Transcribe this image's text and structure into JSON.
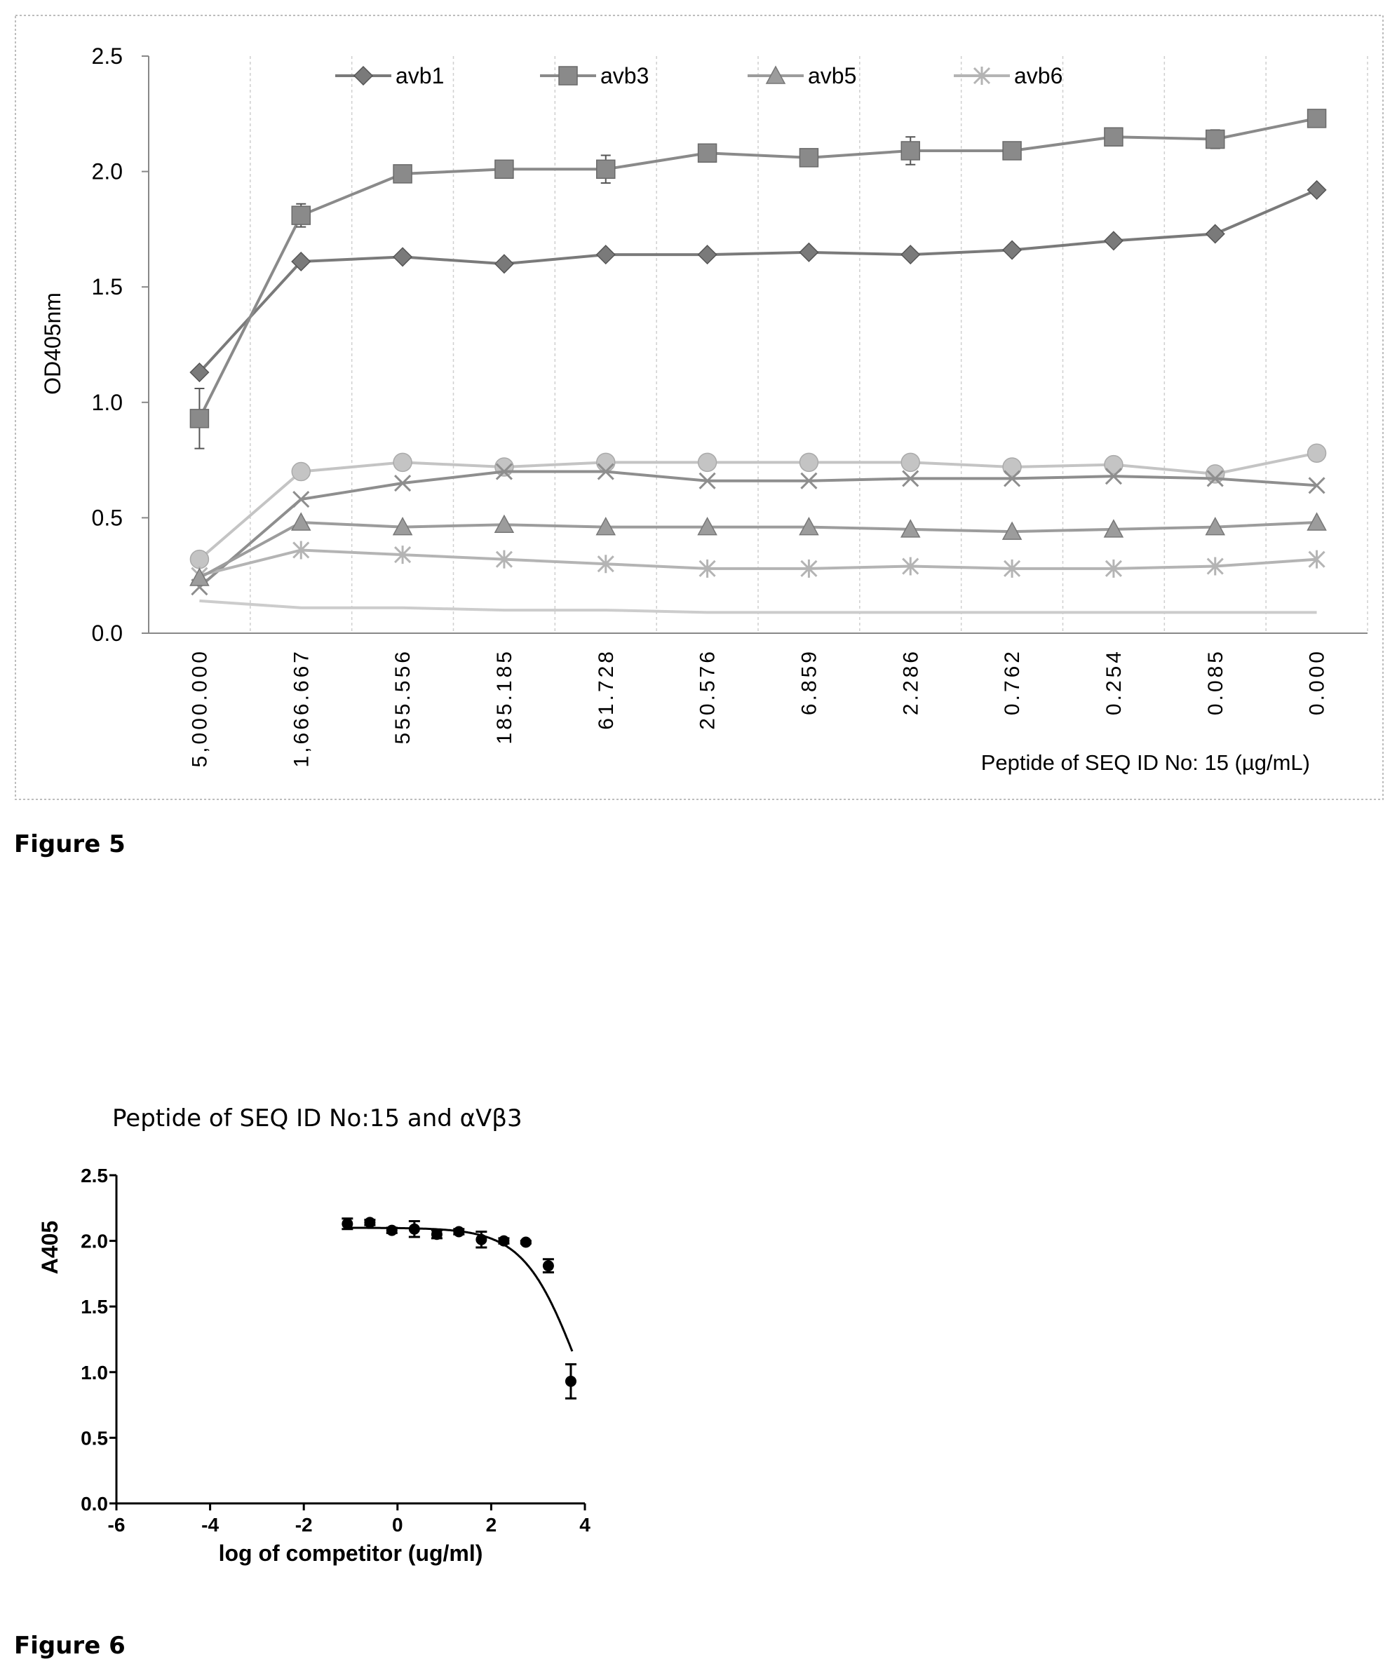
{
  "figure5": {
    "caption": "Figure 5",
    "chart_data": {
      "type": "line",
      "title": "",
      "ylabel": "OD405nm",
      "xlabel": "Peptide of SEQ ID No: 15 (µg/mL)",
      "ylim": [
        0,
        2.5
      ],
      "yticks": [
        "0.0",
        "0.5",
        "1.0",
        "1.5",
        "2.0",
        "2.5"
      ],
      "categories": [
        "5,000.000",
        "1,666.667",
        "555.556",
        "185.185",
        "61.728",
        "20.576",
        "6.859",
        "2.286",
        "0.762",
        "0.254",
        "0.085",
        "0.000"
      ],
      "grid": true,
      "legend_position": "top",
      "series": [
        {
          "name": "avb1",
          "marker": "diamond",
          "color": "#7a7a7a",
          "values": [
            1.13,
            1.61,
            1.63,
            1.6,
            1.64,
            1.64,
            1.65,
            1.64,
            1.66,
            1.7,
            1.73,
            1.92
          ]
        },
        {
          "name": "avb3",
          "marker": "square",
          "color": "#8a8a8a",
          "values": [
            0.93,
            1.81,
            1.99,
            2.01,
            2.01,
            2.08,
            2.06,
            2.09,
            2.09,
            2.15,
            2.14,
            2.23
          ],
          "errors": [
            0.13,
            0.05,
            0.02,
            0.02,
            0.06,
            0.01,
            0.02,
            0.06,
            0.01,
            0.01,
            0.04,
            0.01
          ]
        },
        {
          "name": "avb5",
          "marker": "triangle",
          "color": "#9c9c9c",
          "values": [
            0.24,
            0.48,
            0.46,
            0.47,
            0.46,
            0.46,
            0.46,
            0.45,
            0.44,
            0.45,
            0.46,
            0.48
          ]
        },
        {
          "name": "avb6",
          "marker": "star",
          "color": "#b4b4b4",
          "values": [
            0.25,
            0.36,
            0.34,
            0.32,
            0.3,
            0.28,
            0.28,
            0.29,
            0.28,
            0.28,
            0.29,
            0.32
          ]
        },
        {
          "marker": "circle",
          "color": "#c4c4c4",
          "values": [
            0.32,
            0.7,
            0.74,
            0.72,
            0.74,
            0.74,
            0.74,
            0.74,
            0.72,
            0.73,
            0.69,
            0.78
          ]
        },
        {
          "marker": "x",
          "color": "#8e8e8e",
          "values": [
            0.2,
            0.58,
            0.65,
            0.7,
            0.7,
            0.66,
            0.66,
            0.67,
            0.67,
            0.68,
            0.67,
            0.64
          ]
        },
        {
          "marker": "none",
          "color": "#cccccc",
          "values": [
            0.14,
            0.11,
            0.11,
            0.1,
            0.1,
            0.09,
            0.09,
            0.09,
            0.09,
            0.09,
            0.09,
            0.09
          ]
        }
      ]
    }
  },
  "figure6": {
    "caption": "Figure 6",
    "chart_data": {
      "type": "scatter",
      "title": "Peptide of SEQ ID No:15 and αVβ3",
      "xlabel": "log of competitor (ug/ml)",
      "ylabel": "A405",
      "xlim": [
        -6,
        4
      ],
      "ylim": [
        0,
        2.5
      ],
      "xticks": [
        "-6",
        "-4",
        "-2",
        "0",
        "2",
        "4"
      ],
      "yticks": [
        "0.0",
        "0.5",
        "1.0",
        "1.5",
        "2.0",
        "2.5"
      ],
      "points": [
        {
          "x": -1.07,
          "y": 2.13,
          "err": 0.04
        },
        {
          "x": -0.59,
          "y": 2.14,
          "err": 0.02
        },
        {
          "x": -0.12,
          "y": 2.08,
          "err": 0.02
        },
        {
          "x": 0.36,
          "y": 2.09,
          "err": 0.06
        },
        {
          "x": 0.84,
          "y": 2.05,
          "err": 0.03
        },
        {
          "x": 1.31,
          "y": 2.07,
          "err": 0.02
        },
        {
          "x": 1.79,
          "y": 2.01,
          "err": 0.06
        },
        {
          "x": 2.27,
          "y": 2.0,
          "err": 0.02
        },
        {
          "x": 2.74,
          "y": 1.99,
          "err": 0.01
        },
        {
          "x": 3.22,
          "y": 1.81,
          "err": 0.05
        },
        {
          "x": 3.7,
          "y": 0.93,
          "err": 0.13
        }
      ],
      "fit": {
        "top": 2.1,
        "bottom": 0.0,
        "log_ic50": 3.85,
        "hill": -0.75
      }
    }
  }
}
